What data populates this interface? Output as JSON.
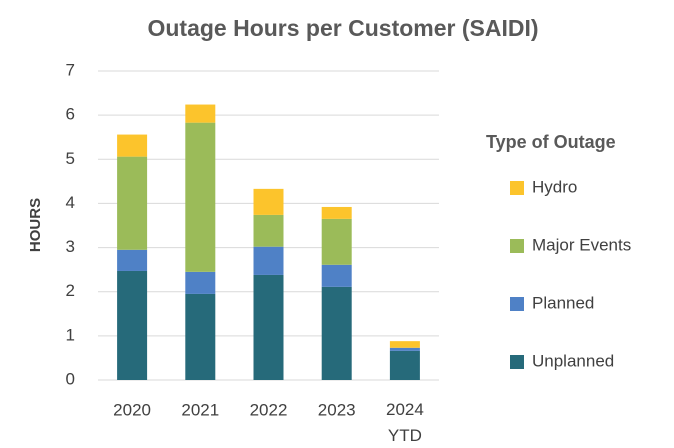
{
  "chart_data": {
    "type": "stacked_bar",
    "title": "Outage Hours per Customer (SAIDI)",
    "y_label": "HOURS",
    "legend_title": "Type of Outage",
    "categories": [
      "2020",
      "2021",
      "2022",
      "2023",
      "2024 YTD"
    ],
    "series": [
      {
        "name": "Unplanned",
        "color": "#266a7a",
        "values": [
          2.47,
          1.95,
          2.38,
          2.11,
          0.66
        ]
      },
      {
        "name": "Planned",
        "color": "#4f81c6",
        "values": [
          0.48,
          0.5,
          0.64,
          0.5,
          0.07
        ]
      },
      {
        "name": "Major Events",
        "color": "#9bbb59",
        "values": [
          2.11,
          3.38,
          0.72,
          1.04,
          0
        ]
      },
      {
        "name": "Hydro",
        "color": "#fcc42c",
        "values": [
          0.5,
          0.41,
          0.59,
          0.27,
          0.15
        ]
      }
    ],
    "ylim": [
      0,
      7
    ],
    "yticks": [
      0,
      1,
      2,
      3,
      4,
      5,
      6,
      7
    ],
    "grid": true,
    "legend": "right"
  }
}
